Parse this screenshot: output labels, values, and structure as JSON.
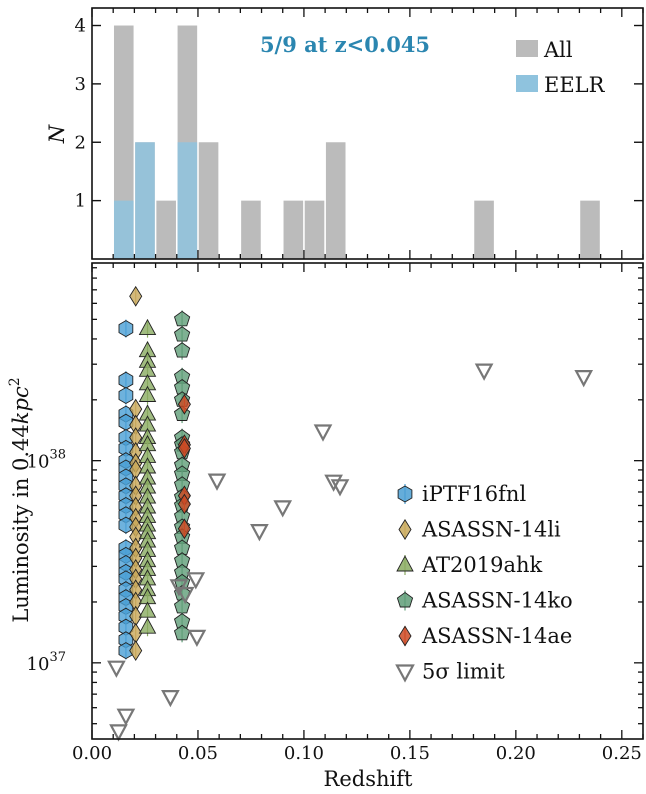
{
  "chart_data": [
    {
      "type": "bar",
      "panel": "top",
      "ylabel": "N",
      "yticks": [
        "1",
        "2",
        "3",
        "4"
      ],
      "ylim": [
        0,
        4.3
      ],
      "annotation": "5/9 at z<0.045",
      "annotation_color": "#2b86b0",
      "legend_position": "top-right",
      "bin_width": 0.01,
      "series": [
        {
          "name": "All",
          "color": "#bbbbbb",
          "bins": [
            {
              "z": 0.01,
              "n": 4
            },
            {
              "z": 0.02,
              "n": 2
            },
            {
              "z": 0.03,
              "n": 1
            },
            {
              "z": 0.04,
              "n": 4
            },
            {
              "z": 0.05,
              "n": 2
            },
            {
              "z": 0.07,
              "n": 1
            },
            {
              "z": 0.09,
              "n": 1
            },
            {
              "z": 0.1,
              "n": 1
            },
            {
              "z": 0.11,
              "n": 2
            },
            {
              "z": 0.18,
              "n": 1
            },
            {
              "z": 0.23,
              "n": 1
            }
          ]
        },
        {
          "name": "EELR",
          "color": "#8fc3de",
          "bins": [
            {
              "z": 0.01,
              "n": 1
            },
            {
              "z": 0.02,
              "n": 2
            },
            {
              "z": 0.04,
              "n": 2
            }
          ]
        }
      ]
    },
    {
      "type": "scatter",
      "panel": "bottom",
      "xlabel": "Redshift",
      "ylabel_prefix": "Luminosity in 0.44",
      "ylabel_unit": "kpc",
      "ylabel_exp": "2",
      "xlim": [
        0.0,
        0.26
      ],
      "ylim": [
        4.2e+36,
        9.5e+38
      ],
      "yscale": "log",
      "xticks": [
        "0.00",
        "0.05",
        "0.10",
        "0.15",
        "0.20",
        "0.25"
      ],
      "yticks": [
        {
          "base": "10",
          "exp": "37"
        },
        {
          "base": "10",
          "exp": "38"
        }
      ],
      "legend_position": "center-right",
      "series": [
        {
          "name": "iPTF16fnl",
          "marker": "hexagon",
          "color": "#4a9fd4",
          "x": [
            0.016,
            0.016,
            0.016,
            0.016,
            0.016,
            0.016,
            0.016,
            0.016,
            0.016,
            0.016,
            0.016,
            0.016,
            0.016,
            0.016,
            0.016,
            0.016,
            0.016,
            0.016,
            0.016,
            0.016,
            0.016,
            0.016,
            0.016,
            0.016,
            0.016,
            0.016,
            0.016
          ],
          "y": [
            4.5e+38,
            2.5e+38,
            2.1e+38,
            1.7e+38,
            1.55e+38,
            1.3e+38,
            1.15e+38,
            1e+38,
            9.2e+37,
            8.3e+37,
            7.5e+37,
            6.7e+37,
            6e+37,
            5.4e+37,
            4.8e+37,
            3.7e+37,
            3.4e+37,
            3.1e+37,
            2.8e+37,
            2.6e+37,
            2.3e+37,
            2.1e+37,
            1.9e+37,
            1.7e+37,
            1.5e+37,
            1.3e+37,
            1.15e+37
          ]
        },
        {
          "name": "ASASSN-14li",
          "marker": "diamond",
          "color": "#c8a85a",
          "x": [
            0.0206,
            0.0206,
            0.0206,
            0.0206,
            0.0206,
            0.0206,
            0.0206,
            0.0206,
            0.0206,
            0.0206,
            0.0206,
            0.0206,
            0.0206,
            0.0206,
            0.0206,
            0.0206,
            0.0206,
            0.0206,
            0.0206,
            0.0206,
            0.0206,
            0.0206
          ],
          "y": [
            6.5e+38,
            1.8e+38,
            1.5e+38,
            1.3e+38,
            1.1e+38,
            9.7e+37,
            9e+37,
            7.5e+37,
            6.7e+37,
            5.9e+37,
            5.2e+37,
            4.7e+37,
            4.2e+37,
            3.7e+37,
            3.3e+37,
            2.9e+37,
            2.6e+37,
            2.3e+37,
            2e+37,
            1.7e+37,
            1.4e+37,
            1.15e+37
          ]
        },
        {
          "name": "AT2019ahk",
          "marker": "triangle",
          "color": "#8aab62",
          "x": [
            0.0262,
            0.0262,
            0.0262,
            0.0262,
            0.0262,
            0.0262,
            0.0262,
            0.0262,
            0.0262,
            0.0262,
            0.0262,
            0.0262,
            0.0262,
            0.0262,
            0.0262,
            0.0262,
            0.0262,
            0.0262,
            0.0262,
            0.0262,
            0.0262,
            0.0262,
            0.0262,
            0.0262,
            0.0262,
            0.0262,
            0.0262,
            0.0262
          ],
          "y": [
            4.5e+38,
            3.5e+38,
            3.1e+38,
            2.8e+38,
            2.4e+38,
            2.1e+38,
            1.7e+38,
            1.5e+38,
            1.3e+38,
            1.2e+38,
            1.05e+38,
            9.3e+37,
            8.2e+37,
            7.4e+37,
            6.6e+37,
            5.9e+37,
            5.3e+37,
            4.8e+37,
            4.4e+37,
            4e+37,
            3.6e+37,
            3.2e+37,
            2.9e+37,
            2.6e+37,
            2.3e+37,
            2.1e+37,
            1.8e+37,
            1.5e+37
          ]
        },
        {
          "name": "ASASSN-14ko",
          "marker": "pentagon",
          "color": "#5f9e78",
          "x": [
            0.0425,
            0.0425,
            0.0425,
            0.0425,
            0.0425,
            0.0425,
            0.0425,
            0.0425,
            0.0425,
            0.0425,
            0.0425,
            0.0425,
            0.0425,
            0.0425,
            0.0425,
            0.0425,
            0.0425,
            0.0425,
            0.0425,
            0.0425,
            0.0425,
            0.0425,
            0.0425,
            0.0425,
            0.0425,
            0.0425
          ],
          "y": [
            5e+38,
            4.2e+38,
            3.5e+38,
            2.6e+38,
            2.3e+38,
            2e+38,
            1.7e+38,
            1.3e+38,
            1.2e+38,
            1.1e+38,
            9.5e+37,
            8.6e+37,
            7.6e+37,
            6.6e+37,
            6e+37,
            5.3e+37,
            4.7e+37,
            4.2e+37,
            3.7e+37,
            3.2e+37,
            2.8e+37,
            2.5e+37,
            2.2e+37,
            1.9e+37,
            1.6e+37,
            1.4e+37
          ]
        },
        {
          "name": "ASASSN-14ae",
          "marker": "diamond",
          "color": "#cc4a24",
          "x": [
            0.0436,
            0.0436,
            0.0436,
            0.0436,
            0.0436,
            0.0436
          ],
          "y": [
            1.9e+38,
            1.2e+38,
            1.15e+38,
            6.7e+37,
            6.1e+37,
            4.6e+37
          ]
        },
        {
          "name": "5σ limit",
          "marker": "triangle-down",
          "color": "#777777",
          "x": [
            0.0115,
            0.0125,
            0.016,
            0.037,
            0.041,
            0.044,
            0.049,
            0.0495,
            0.059,
            0.079,
            0.09,
            0.109,
            0.114,
            0.117,
            0.185,
            0.232
          ],
          "y": [
            9.5e+36,
            4.6e+36,
            5.5e+36,
            6.8e+36,
            2.4e+37,
            2.2e+37,
            2.6e+37,
            1.35e+37,
            8e+37,
            4.5e+37,
            5.9e+37,
            1.4e+38,
            7.9e+37,
            7.5e+37,
            2.8e+38,
            2.6e+38
          ]
        }
      ]
    }
  ]
}
